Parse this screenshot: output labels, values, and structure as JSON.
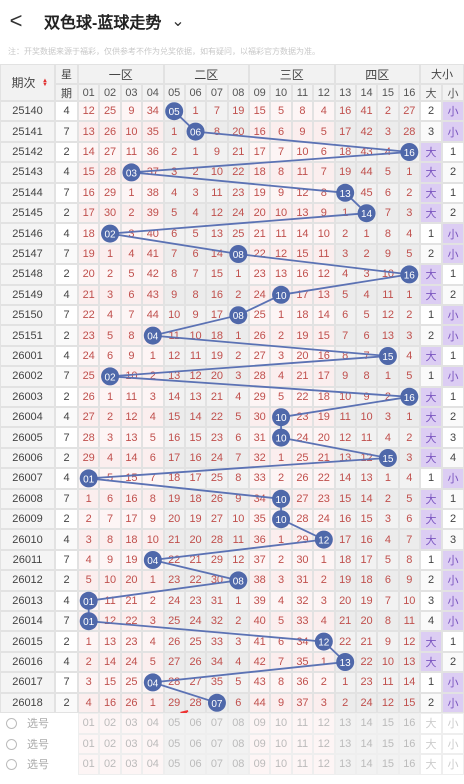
{
  "header": {
    "back": "<",
    "title": "双色球-蓝球走势",
    "dropdown": "⌄",
    "note": "注：开奖数据来源于福彩，仅供参考不作为兑奖依据，如有疑问，以福彩官方数据为准。"
  },
  "table": {
    "issue_header": "期次",
    "sort_icon": "▲▼",
    "day_header": [
      "星",
      "期"
    ],
    "zones": [
      "一区",
      "二区",
      "三区",
      "四区"
    ],
    "size_header": "大小",
    "numbers": [
      "01",
      "02",
      "03",
      "04",
      "05",
      "06",
      "07",
      "08",
      "09",
      "10",
      "11",
      "12",
      "13",
      "14",
      "15",
      "16"
    ],
    "big": "大",
    "small": "小",
    "rows": [
      {
        "issue": 25140,
        "day": 4,
        "cells": [
          12,
          25,
          9,
          34,
          "05",
          1,
          7,
          19,
          15,
          5,
          8,
          4,
          16,
          41,
          2,
          27
        ],
        "big": 2,
        "small": "小"
      },
      {
        "issue": 25141,
        "day": 7,
        "cells": [
          13,
          26,
          10,
          35,
          1,
          "06",
          8,
          20,
          16,
          6,
          9,
          5,
          17,
          42,
          3,
          28
        ],
        "big": 3,
        "small": "小"
      },
      {
        "issue": 25142,
        "day": 2,
        "cells": [
          14,
          27,
          11,
          36,
          2,
          1,
          9,
          21,
          17,
          7,
          10,
          6,
          18,
          43,
          4,
          "16"
        ],
        "big": "大",
        "small": 1
      },
      {
        "issue": 25143,
        "day": 4,
        "cells": [
          15,
          28,
          "03",
          37,
          3,
          2,
          10,
          22,
          18,
          8,
          11,
          7,
          19,
          44,
          5,
          1
        ],
        "big": "大",
        "small": 2
      },
      {
        "issue": 25144,
        "day": 7,
        "cells": [
          16,
          29,
          1,
          38,
          4,
          3,
          11,
          23,
          19,
          9,
          12,
          8,
          "13",
          45,
          6,
          2
        ],
        "big": "大",
        "small": 1
      },
      {
        "issue": 25145,
        "day": 2,
        "cells": [
          17,
          30,
          2,
          39,
          5,
          4,
          12,
          24,
          20,
          10,
          13,
          9,
          1,
          "14",
          7,
          3
        ],
        "big": "大",
        "small": 2
      },
      {
        "issue": 25146,
        "day": 4,
        "cells": [
          18,
          "02",
          3,
          40,
          6,
          5,
          13,
          25,
          21,
          11,
          14,
          10,
          2,
          1,
          8,
          4
        ],
        "big": 1,
        "small": "小"
      },
      {
        "issue": 25147,
        "day": 7,
        "cells": [
          19,
          1,
          4,
          41,
          7,
          6,
          14,
          "08",
          22,
          12,
          15,
          11,
          3,
          2,
          9,
          5
        ],
        "big": 2,
        "small": "小"
      },
      {
        "issue": 25148,
        "day": 2,
        "cells": [
          20,
          2,
          5,
          42,
          8,
          7,
          15,
          1,
          23,
          13,
          16,
          12,
          4,
          3,
          10,
          "16"
        ],
        "big": "大",
        "small": 1
      },
      {
        "issue": 25149,
        "day": 4,
        "cells": [
          21,
          3,
          6,
          43,
          9,
          8,
          16,
          2,
          24,
          "10",
          17,
          13,
          5,
          4,
          11,
          1
        ],
        "big": "大",
        "small": 2
      },
      {
        "issue": 25150,
        "day": 7,
        "cells": [
          22,
          4,
          7,
          44,
          10,
          9,
          17,
          "08",
          25,
          1,
          18,
          14,
          6,
          5,
          12,
          2
        ],
        "big": 1,
        "small": "小"
      },
      {
        "issue": 25151,
        "day": 2,
        "cells": [
          23,
          5,
          8,
          "04",
          11,
          10,
          18,
          1,
          26,
          2,
          19,
          15,
          7,
          6,
          13,
          3
        ],
        "big": 2,
        "small": "小"
      },
      {
        "issue": 26001,
        "day": 4,
        "cells": [
          24,
          6,
          9,
          1,
          12,
          11,
          19,
          2,
          27,
          3,
          20,
          16,
          8,
          7,
          "15",
          4
        ],
        "big": "大",
        "small": 1
      },
      {
        "issue": 26002,
        "day": 7,
        "cells": [
          25,
          "02",
          10,
          2,
          13,
          12,
          20,
          3,
          28,
          4,
          21,
          17,
          9,
          8,
          1,
          5
        ],
        "big": 1,
        "small": "小"
      },
      {
        "issue": 26003,
        "day": 2,
        "cells": [
          26,
          1,
          11,
          3,
          14,
          13,
          21,
          4,
          29,
          5,
          22,
          18,
          10,
          9,
          2,
          "16"
        ],
        "big": "大",
        "small": 1
      },
      {
        "issue": 26004,
        "day": 4,
        "cells": [
          27,
          2,
          12,
          4,
          15,
          14,
          22,
          5,
          30,
          "10",
          23,
          19,
          11,
          10,
          3,
          1
        ],
        "big": "大",
        "small": 2
      },
      {
        "issue": 26005,
        "day": 7,
        "cells": [
          28,
          3,
          13,
          5,
          16,
          15,
          23,
          6,
          31,
          "10",
          24,
          20,
          12,
          11,
          4,
          2
        ],
        "big": "大",
        "small": 3
      },
      {
        "issue": 26006,
        "day": 2,
        "cells": [
          29,
          4,
          14,
          6,
          17,
          16,
          24,
          7,
          32,
          1,
          25,
          21,
          13,
          12,
          "15",
          3
        ],
        "big": "大",
        "small": 4
      },
      {
        "issue": 26007,
        "day": 4,
        "cells": [
          "01",
          5,
          15,
          7,
          18,
          17,
          25,
          8,
          33,
          2,
          26,
          22,
          14,
          13,
          1,
          4
        ],
        "big": 1,
        "small": "小"
      },
      {
        "issue": 26008,
        "day": 7,
        "cells": [
          1,
          6,
          16,
          8,
          19,
          18,
          26,
          9,
          34,
          "10",
          27,
          23,
          15,
          14,
          2,
          5
        ],
        "big": "大",
        "small": 1
      },
      {
        "issue": 26009,
        "day": 2,
        "cells": [
          2,
          7,
          17,
          9,
          20,
          19,
          27,
          10,
          35,
          "10",
          28,
          24,
          16,
          15,
          3,
          6
        ],
        "big": "大",
        "small": 2
      },
      {
        "issue": 26010,
        "day": 4,
        "cells": [
          3,
          8,
          18,
          10,
          21,
          20,
          28,
          11,
          36,
          1,
          29,
          "12",
          17,
          16,
          4,
          7
        ],
        "big": "大",
        "small": 3
      },
      {
        "issue": 26011,
        "day": 7,
        "cells": [
          4,
          9,
          19,
          "04",
          22,
          21,
          29,
          12,
          37,
          2,
          30,
          1,
          18,
          17,
          5,
          8
        ],
        "big": 1,
        "small": "小"
      },
      {
        "issue": 26012,
        "day": 2,
        "cells": [
          5,
          10,
          20,
          1,
          23,
          22,
          30,
          "08",
          38,
          3,
          31,
          2,
          19,
          18,
          6,
          9
        ],
        "big": 2,
        "small": "小"
      },
      {
        "issue": 26013,
        "day": 4,
        "cells": [
          "01",
          11,
          21,
          2,
          24,
          23,
          31,
          1,
          39,
          4,
          32,
          3,
          20,
          19,
          7,
          10
        ],
        "big": 3,
        "small": "小"
      },
      {
        "issue": 26014,
        "day": 7,
        "cells": [
          "01",
          12,
          22,
          3,
          25,
          24,
          32,
          2,
          40,
          5,
          33,
          4,
          21,
          20,
          8,
          11
        ],
        "big": 4,
        "small": "小"
      },
      {
        "issue": 26015,
        "day": 2,
        "cells": [
          1,
          13,
          23,
          4,
          26,
          25,
          33,
          3,
          41,
          6,
          34,
          "12",
          22,
          21,
          9,
          12
        ],
        "big": "大",
        "small": 1
      },
      {
        "issue": 26016,
        "day": 4,
        "cells": [
          2,
          14,
          24,
          5,
          27,
          26,
          34,
          4,
          42,
          7,
          35,
          1,
          "13",
          22,
          10,
          13
        ],
        "big": "大",
        "small": 2
      },
      {
        "issue": 26017,
        "day": 7,
        "cells": [
          3,
          15,
          25,
          "04",
          28,
          27,
          35,
          5,
          43,
          8,
          36,
          2,
          1,
          23,
          11,
          14
        ],
        "big": 1,
        "small": "小"
      },
      {
        "issue": 26018,
        "day": 2,
        "cells": [
          4,
          16,
          26,
          1,
          29,
          28,
          "07",
          6,
          44,
          9,
          37,
          3,
          2,
          24,
          12,
          15
        ],
        "big": 2,
        "small": "小"
      }
    ]
  },
  "selector": {
    "label": "选号",
    "rows": 3
  }
}
